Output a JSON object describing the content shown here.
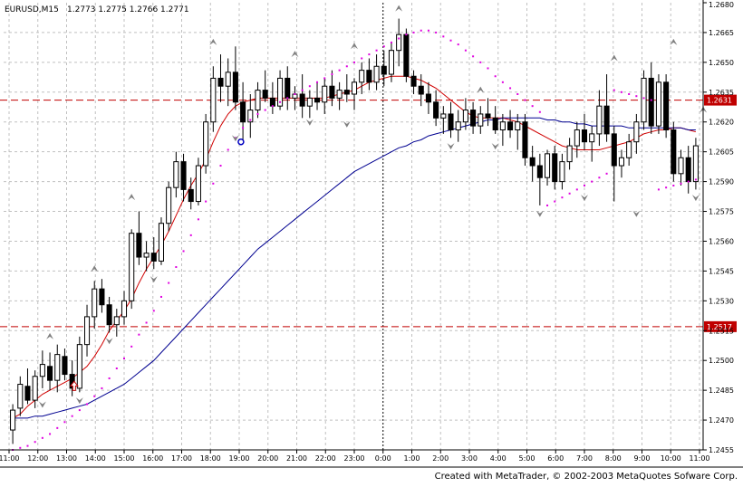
{
  "header": {
    "symbol_label": "EURUSD,M15",
    "ohlc_text": "1.2773  1.2775  1.2766  1.2771"
  },
  "footer": {
    "credit": "Created with MetaTrader, © 2002-2003 MetaQuotes Sofware Corp."
  },
  "colors": {
    "background": "#ffffff",
    "grid": "#c0c0c0",
    "bull_candle": "#ffffff",
    "bear_candle": "#000000",
    "fast_ma": "#d00000",
    "slow_ma": "#000090",
    "parabolic_sar": "#e000e0",
    "hline": "#c00000",
    "fractal": "#808080"
  },
  "chart_data": {
    "type": "candlestick",
    "title": "EURUSD,M15",
    "ylim": [
      1.2455,
      1.268
    ],
    "y_ticks": [
      "1.2680",
      "1.2665",
      "1.2650",
      "1.2635",
      "1.2620",
      "1.2605",
      "1.2590",
      "1.2575",
      "1.2560",
      "1.2545",
      "1.2530",
      "1.2515",
      "1.2500",
      "1.2485",
      "1.2470",
      "1.2455"
    ],
    "x_ticks": [
      "11:00",
      "12:00",
      "13:00",
      "14:00",
      "15:00",
      "16:00",
      "17:00",
      "18:00",
      "19:00",
      "20:00",
      "21:00",
      "22:00",
      "23:00",
      "0:00",
      "1:00",
      "2:00",
      "3:00",
      "4:00",
      "5:00",
      "6:00",
      "7:00",
      "8:00",
      "9:00",
      "10:00",
      "11:00"
    ],
    "grid": true,
    "day_separator_label": "0:00",
    "horizontal_lines": [
      {
        "value": 1.2631,
        "label": "1.2631"
      },
      {
        "value": 1.2517,
        "label": "1.2517"
      }
    ],
    "candles_ohlc": [
      [
        1.2465,
        1.2478,
        1.2458,
        1.2475
      ],
      [
        1.2476,
        1.2492,
        1.2472,
        1.2488
      ],
      [
        1.2487,
        1.2496,
        1.2478,
        1.248
      ],
      [
        1.248,
        1.2495,
        1.2476,
        1.2492
      ],
      [
        1.2492,
        1.2505,
        1.2486,
        1.2498
      ],
      [
        1.2497,
        1.2504,
        1.2485,
        1.249
      ],
      [
        1.249,
        1.2508,
        1.2484,
        1.2503
      ],
      [
        1.2502,
        1.2506,
        1.249,
        1.2493
      ],
      [
        1.2493,
        1.25,
        1.2482,
        1.2486
      ],
      [
        1.2486,
        1.2512,
        1.2484,
        1.2508
      ],
      [
        1.2508,
        1.2528,
        1.2502,
        1.2522
      ],
      [
        1.2522,
        1.254,
        1.2516,
        1.2536
      ],
      [
        1.2536,
        1.2541,
        1.2524,
        1.2528
      ],
      [
        1.2528,
        1.2532,
        1.2514,
        1.2518
      ],
      [
        1.2518,
        1.2526,
        1.2512,
        1.2522
      ],
      [
        1.2522,
        1.2535,
        1.2518,
        1.253
      ],
      [
        1.253,
        1.2566,
        1.2526,
        1.2564
      ],
      [
        1.2564,
        1.2575,
        1.2548,
        1.2552
      ],
      [
        1.2552,
        1.256,
        1.2545,
        1.2554
      ],
      [
        1.2554,
        1.2562,
        1.2546,
        1.255
      ],
      [
        1.255,
        1.2572,
        1.2548,
        1.2569
      ],
      [
        1.2569,
        1.259,
        1.2565,
        1.2587
      ],
      [
        1.2587,
        1.2605,
        1.2582,
        1.26
      ],
      [
        1.26,
        1.2604,
        1.258,
        1.2586
      ],
      [
        1.2586,
        1.2592,
        1.2576,
        1.258
      ],
      [
        1.258,
        1.2602,
        1.2578,
        1.2598
      ],
      [
        1.2598,
        1.2624,
        1.2594,
        1.262
      ],
      [
        1.262,
        1.2648,
        1.2615,
        1.2642
      ],
      [
        1.2642,
        1.2654,
        1.263,
        1.2638
      ],
      [
        1.2638,
        1.2652,
        1.2628,
        1.2645
      ],
      [
        1.2645,
        1.2658,
        1.2626,
        1.263
      ],
      [
        1.263,
        1.264,
        1.261,
        1.262
      ],
      [
        1.262,
        1.2634,
        1.2612,
        1.2626
      ],
      [
        1.2626,
        1.264,
        1.2622,
        1.2636
      ],
      [
        1.2636,
        1.2646,
        1.263,
        1.2632
      ],
      [
        1.2632,
        1.264,
        1.2624,
        1.2628
      ],
      [
        1.2628,
        1.2646,
        1.2626,
        1.2642
      ],
      [
        1.2642,
        1.2648,
        1.2626,
        1.2632
      ],
      [
        1.2632,
        1.2638,
        1.2626,
        1.2634
      ],
      [
        1.2634,
        1.2644,
        1.2622,
        1.2628
      ],
      [
        1.2628,
        1.2636,
        1.2622,
        1.2632
      ],
      [
        1.2632,
        1.264,
        1.2626,
        1.263
      ],
      [
        1.263,
        1.2642,
        1.2624,
        1.2638
      ],
      [
        1.2638,
        1.2646,
        1.2628,
        1.2632
      ],
      [
        1.2632,
        1.264,
        1.2626,
        1.2636
      ],
      [
        1.2636,
        1.2644,
        1.263,
        1.2634
      ],
      [
        1.2634,
        1.2642,
        1.2626,
        1.264
      ],
      [
        1.264,
        1.265,
        1.2634,
        1.2646
      ],
      [
        1.2646,
        1.2652,
        1.2636,
        1.264
      ],
      [
        1.264,
        1.2654,
        1.2636,
        1.2648
      ],
      [
        1.2648,
        1.2656,
        1.2638,
        1.2644
      ],
      [
        1.2644,
        1.266,
        1.264,
        1.2656
      ],
      [
        1.2656,
        1.2672,
        1.2648,
        1.2664
      ],
      [
        1.2664,
        1.2667,
        1.264,
        1.2643
      ],
      [
        1.2643,
        1.2646,
        1.2634,
        1.2638
      ],
      [
        1.2638,
        1.2644,
        1.2628,
        1.2634
      ],
      [
        1.2634,
        1.264,
        1.2624,
        1.263
      ],
      [
        1.263,
        1.2636,
        1.2618,
        1.2622
      ],
      [
        1.2622,
        1.2628,
        1.2614,
        1.2624
      ],
      [
        1.2624,
        1.263,
        1.2612,
        1.2616
      ],
      [
        1.2616,
        1.2626,
        1.261,
        1.262
      ],
      [
        1.262,
        1.2632,
        1.2616,
        1.2626
      ],
      [
        1.2626,
        1.263,
        1.2614,
        1.2618
      ],
      [
        1.2618,
        1.2628,
        1.2614,
        1.2624
      ],
      [
        1.2624,
        1.2632,
        1.2618,
        1.2622
      ],
      [
        1.2622,
        1.2628,
        1.2614,
        1.2616
      ],
      [
        1.2616,
        1.2624,
        1.2608,
        1.262
      ],
      [
        1.262,
        1.2626,
        1.2612,
        1.2616
      ],
      [
        1.2616,
        1.2624,
        1.2606,
        1.262
      ],
      [
        1.262,
        1.2624,
        1.2598,
        1.2602
      ],
      [
        1.2602,
        1.2608,
        1.259,
        1.2598
      ],
      [
        1.2598,
        1.2604,
        1.2578,
        1.2592
      ],
      [
        1.2592,
        1.2606,
        1.2588,
        1.2604
      ],
      [
        1.2604,
        1.2608,
        1.2586,
        1.259
      ],
      [
        1.259,
        1.2604,
        1.2586,
        1.26
      ],
      [
        1.26,
        1.2612,
        1.2596,
        1.2608
      ],
      [
        1.2608,
        1.262,
        1.2602,
        1.2616
      ],
      [
        1.2616,
        1.2624,
        1.2606,
        1.261
      ],
      [
        1.261,
        1.2618,
        1.26,
        1.2614
      ],
      [
        1.2614,
        1.2636,
        1.2608,
        1.2628
      ],
      [
        1.2628,
        1.2644,
        1.261,
        1.2614
      ],
      [
        1.2614,
        1.2618,
        1.258,
        1.2598
      ],
      [
        1.2598,
        1.2606,
        1.2592,
        1.2602
      ],
      [
        1.2602,
        1.2614,
        1.2598,
        1.261
      ],
      [
        1.261,
        1.2624,
        1.2604,
        1.262
      ],
      [
        1.262,
        1.2646,
        1.2616,
        1.2642
      ],
      [
        1.2642,
        1.265,
        1.2614,
        1.2618
      ],
      [
        1.2618,
        1.2644,
        1.2614,
        1.264
      ],
      [
        1.264,
        1.2644,
        1.2612,
        1.2616
      ],
      [
        1.2616,
        1.262,
        1.259,
        1.2594
      ],
      [
        1.2594,
        1.2606,
        1.2588,
        1.2602
      ],
      [
        1.2602,
        1.2608,
        1.2584,
        1.259
      ],
      [
        1.259,
        1.2612,
        1.2586,
        1.2608
      ]
    ],
    "series": [
      {
        "values": [
          1.2471,
          1.2473,
          1.2477,
          1.248,
          1.2483,
          1.2485,
          1.2487,
          1.2489,
          1.2491,
          1.2494,
          1.2497,
          1.2502,
          1.2508,
          1.2515,
          1.252,
          1.2525,
          1.2531,
          1.2539,
          1.2546,
          1.2552,
          1.2558,
          1.2565,
          1.2573,
          1.2581,
          1.2588,
          1.2594,
          1.2601,
          1.261,
          1.2618,
          1.2624,
          1.2628,
          1.263,
          1.2631,
          1.2632,
          1.2632,
          1.2632,
          1.2632,
          1.2632,
          1.2632,
          1.2632,
          1.2632,
          1.2632,
          1.2632,
          1.2633,
          1.2634,
          1.2635,
          1.2636,
          1.2638,
          1.264,
          1.2641,
          1.2642,
          1.2643,
          1.2643,
          1.2643,
          1.2642,
          1.2641,
          1.2639,
          1.2637,
          1.2634,
          1.2631,
          1.2628,
          1.2625,
          1.2623,
          1.2622,
          1.2622,
          1.2622,
          1.2622,
          1.2621,
          1.262,
          1.2618,
          1.2616,
          1.2614,
          1.2612,
          1.261,
          1.2608,
          1.2607,
          1.2606,
          1.2606,
          1.2606,
          1.2606,
          1.2607,
          1.2608,
          1.2609,
          1.261,
          1.2612,
          1.2614,
          1.2615,
          1.2616,
          1.2616,
          1.2617,
          1.2617,
          1.2616,
          1.2615
        ]
      },
      {
        "values": [
          1.2471,
          1.2471,
          1.2471,
          1.2472,
          1.2472,
          1.2473,
          1.2474,
          1.2475,
          1.2476,
          1.2477,
          1.2478,
          1.248,
          1.2482,
          1.2484,
          1.2486,
          1.2488,
          1.2491,
          1.2494,
          1.2497,
          1.25,
          1.2504,
          1.2508,
          1.2512,
          1.2516,
          1.252,
          1.2524,
          1.2528,
          1.2532,
          1.2536,
          1.254,
          1.2544,
          1.2548,
          1.2552,
          1.2556,
          1.2559,
          1.2562,
          1.2565,
          1.2568,
          1.2571,
          1.2574,
          1.2577,
          1.258,
          1.2583,
          1.2586,
          1.2589,
          1.2592,
          1.2595,
          1.2597,
          1.2599,
          1.2601,
          1.2603,
          1.2605,
          1.2607,
          1.2608,
          1.261,
          1.2611,
          1.2613,
          1.2614,
          1.2615,
          1.2616,
          1.2617,
          1.2618,
          1.2619,
          1.262,
          1.2621,
          1.2621,
          1.2622,
          1.2622,
          1.2622,
          1.2622,
          1.2622,
          1.2622,
          1.2621,
          1.2621,
          1.262,
          1.262,
          1.2619,
          1.2619,
          1.2618,
          1.2618,
          1.2618,
          1.2618,
          1.2618,
          1.2617,
          1.2617,
          1.2617,
          1.2617,
          1.2617,
          1.2617,
          1.2617,
          1.2617,
          1.2616,
          1.2616
        ]
      }
    ],
    "parabolic_sar": [
      1.2455,
      1.2456,
      1.2457,
      1.2459,
      1.2461,
      1.2463,
      1.2466,
      1.2469,
      1.2472,
      1.2475,
      1.2478,
      1.2482,
      1.2486,
      1.2491,
      1.2496,
      1.2501,
      1.2507,
      1.2513,
      1.2519,
      1.2525,
      1.2532,
      1.2539,
      1.2547,
      1.2555,
      1.2563,
      1.2571,
      1.258,
      1.2589,
      1.2598,
      1.2606,
      1.2612,
      1.2617,
      1.2621,
      1.2624,
      1.2626,
      1.2628,
      1.263,
      1.2632,
      1.2634,
      1.2636,
      1.2638,
      1.264,
      1.2642,
      1.2644,
      1.2646,
      1.2648,
      1.265,
      1.2652,
      1.2654,
      1.2656,
      1.2658,
      1.266,
      1.2662,
      1.2664,
      1.2665,
      1.2666,
      1.2666,
      1.2665,
      1.2663,
      1.2661,
      1.2659,
      1.2656,
      1.2653,
      1.265,
      1.2647,
      1.2643,
      1.264,
      1.2637,
      1.2634,
      1.2631,
      1.2628,
      1.2625,
      1.2578,
      1.258,
      1.2582,
      1.2584,
      1.2586,
      1.2588,
      1.259,
      1.2592,
      1.2594,
      1.2636,
      1.2635,
      1.2634,
      1.2633,
      1.2632,
      1.2631,
      1.2586,
      1.2587,
      1.2588,
      1.2589,
      1.259,
      1.2591
    ],
    "fractals_up": [
      [
        5,
        1.2512
      ],
      [
        11,
        1.2546
      ],
      [
        16,
        1.2582
      ],
      [
        27,
        1.266
      ],
      [
        38,
        1.2654
      ],
      [
        46,
        1.2658
      ],
      [
        52,
        1.2677
      ],
      [
        63,
        1.2636
      ],
      [
        81,
        1.2652
      ],
      [
        89,
        1.266
      ],
      [
        93,
        1.2626
      ]
    ],
    "fractals_down": [
      [
        4,
        1.2478
      ],
      [
        9,
        1.248
      ],
      [
        13,
        1.251
      ],
      [
        19,
        1.2541
      ],
      [
        30,
        1.2612
      ],
      [
        40,
        1.262
      ],
      [
        45,
        1.2619
      ],
      [
        59,
        1.2608
      ],
      [
        65,
        1.2608
      ],
      [
        71,
        1.2574
      ],
      [
        77,
        1.2582
      ],
      [
        84,
        1.2574
      ],
      [
        92,
        1.2582
      ]
    ],
    "arrow_up_index": 9
  }
}
